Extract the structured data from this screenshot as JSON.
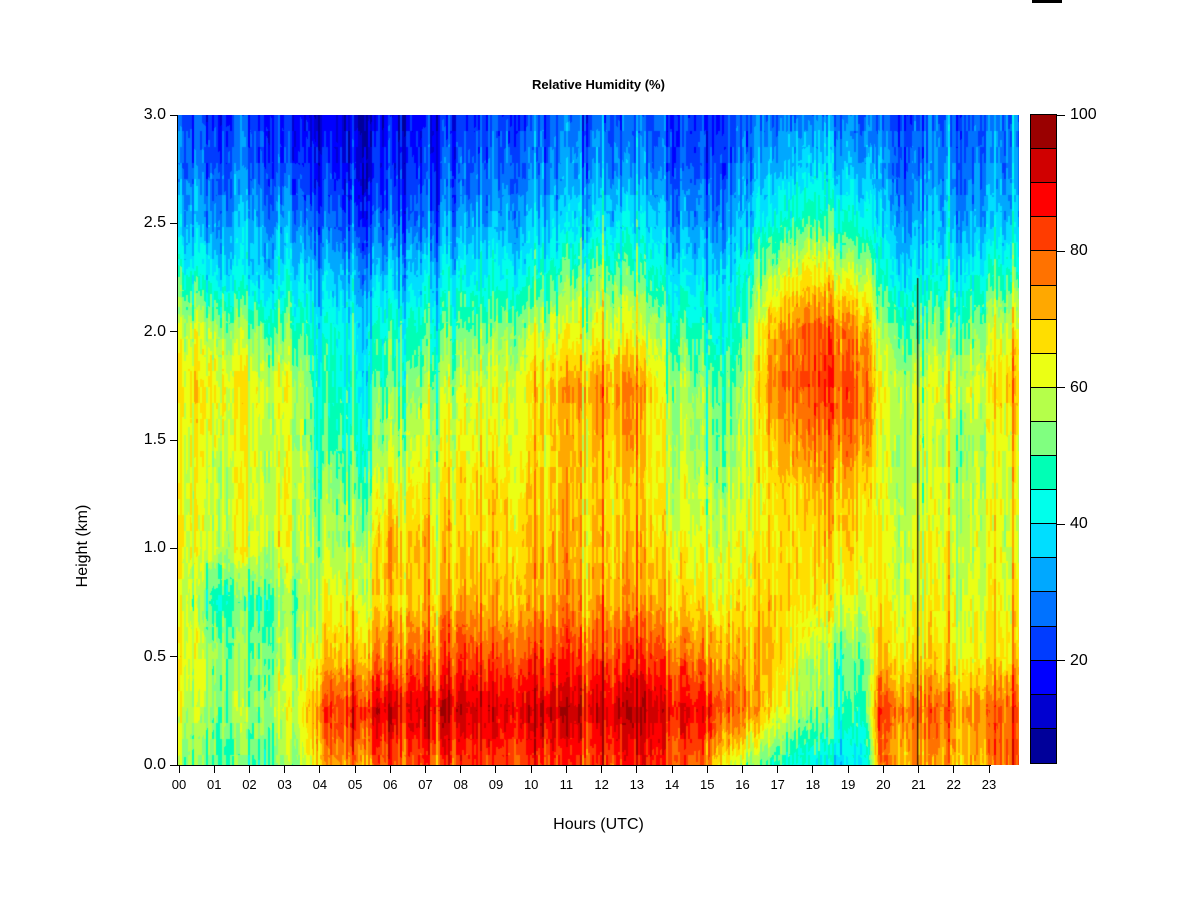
{
  "figure": {
    "title": "Relative Humidity (%)",
    "x_axis": {
      "label": "Hours (UTC)",
      "tick_labels": [
        "00",
        "01",
        "02",
        "03",
        "04",
        "05",
        "06",
        "07",
        "08",
        "09",
        "10",
        "11",
        "12",
        "13",
        "14",
        "15",
        "16",
        "17",
        "18",
        "19",
        "20",
        "21",
        "22",
        "23"
      ]
    },
    "y_axis": {
      "label": "Height (km)",
      "tick_labels": [
        "0.0",
        "0.5",
        "1.0",
        "1.5",
        "2.0",
        "2.5",
        "3.0"
      ]
    },
    "colorbar": {
      "tick_labels": [
        "100",
        "80",
        "60",
        "40",
        "20"
      ]
    }
  },
  "chart_data": {
    "type": "heatmap",
    "title": "Relative Humidity (%)",
    "xlabel": "Hours (UTC)",
    "ylabel": "Height (km)",
    "xlim": [
      0,
      24
    ],
    "ylim": [
      0,
      3
    ],
    "value_range": [
      5,
      100
    ],
    "colormap": "jet",
    "grid": false,
    "legend": "colorbar-right",
    "colorbar_ticks": [
      20,
      40,
      60,
      80,
      100
    ],
    "colorbar_segment_step": 5,
    "colorbar_segment_colors_bottom_to_top": [
      "#00009A",
      "#0000D0",
      "#0000FF",
      "#003CFF",
      "#0072FF",
      "#00A8FF",
      "#00DEFF",
      "#00FFEB",
      "#00FFB5",
      "#80FF80",
      "#B5FF4A",
      "#EBFF14",
      "#FFDE00",
      "#FFA800",
      "#FF7200",
      "#FF3C00",
      "#FF0000",
      "#D00000",
      "#9A0000"
    ],
    "x_hours": [
      0,
      1,
      2,
      3,
      4,
      5,
      6,
      7,
      8,
      9,
      10,
      11,
      12,
      13,
      14,
      15,
      16,
      17,
      18,
      19,
      20,
      21,
      22,
      23,
      24
    ],
    "y_heights_km": [
      0,
      0.25,
      0.5,
      0.75,
      1.0,
      1.25,
      1.5,
      1.75,
      2.0,
      2.25,
      2.5,
      2.75,
      3.0
    ],
    "values_percent_rows_by_height_ascending": [
      [
        54,
        52,
        50,
        52,
        70,
        75,
        80,
        82,
        82,
        82,
        83,
        84,
        85,
        85,
        83,
        80,
        60,
        48,
        42,
        38,
        75,
        72,
        70,
        72,
        80
      ],
      [
        60,
        55,
        55,
        58,
        78,
        85,
        90,
        92,
        92,
        90,
        92,
        93,
        94,
        94,
        90,
        90,
        80,
        65,
        55,
        48,
        82,
        78,
        76,
        76,
        80
      ],
      [
        63,
        58,
        52,
        55,
        65,
        70,
        75,
        80,
        82,
        80,
        82,
        83,
        84,
        83,
        80,
        78,
        72,
        70,
        58,
        52,
        68,
        66,
        65,
        64,
        66
      ],
      [
        62,
        48,
        50,
        52,
        60,
        62,
        68,
        70,
        72,
        70,
        72,
        74,
        75,
        73,
        70,
        68,
        66,
        68,
        66,
        62,
        64,
        62,
        62,
        62,
        62
      ],
      [
        63,
        60,
        62,
        60,
        55,
        55,
        70,
        70,
        68,
        68,
        70,
        72,
        72,
        70,
        66,
        64,
        62,
        66,
        68,
        68,
        62,
        60,
        60,
        60,
        60
      ],
      [
        62,
        60,
        63,
        60,
        52,
        50,
        62,
        65,
        65,
        66,
        68,
        70,
        70,
        68,
        62,
        60,
        58,
        66,
        70,
        70,
        60,
        58,
        58,
        60,
        60
      ],
      [
        62,
        62,
        62,
        58,
        48,
        45,
        55,
        60,
        62,
        62,
        65,
        70,
        74,
        72,
        60,
        56,
        55,
        70,
        76,
        78,
        60,
        58,
        56,
        58,
        62
      ],
      [
        65,
        66,
        64,
        60,
        45,
        42,
        50,
        55,
        58,
        60,
        66,
        72,
        76,
        74,
        58,
        55,
        52,
        76,
        82,
        82,
        62,
        58,
        60,
        62,
        70
      ],
      [
        60,
        58,
        55,
        50,
        42,
        40,
        45,
        48,
        50,
        52,
        58,
        62,
        65,
        62,
        52,
        48,
        46,
        72,
        80,
        78,
        55,
        50,
        52,
        55,
        62
      ],
      [
        45,
        42,
        40,
        38,
        35,
        32,
        35,
        38,
        40,
        42,
        44,
        50,
        55,
        50,
        42,
        40,
        42,
        58,
        68,
        62,
        45,
        40,
        42,
        44,
        48
      ],
      [
        33,
        32,
        35,
        30,
        25,
        22,
        25,
        28,
        30,
        32,
        34,
        38,
        42,
        38,
        33,
        32,
        34,
        44,
        50,
        46,
        36,
        32,
        33,
        34,
        34
      ],
      [
        27,
        26,
        28,
        22,
        18,
        15,
        18,
        22,
        24,
        26,
        28,
        30,
        34,
        30,
        27,
        26,
        28,
        34,
        38,
        36,
        30,
        27,
        28,
        28,
        28
      ],
      [
        24,
        22,
        24,
        18,
        14,
        12,
        15,
        18,
        20,
        22,
        24,
        26,
        28,
        25,
        23,
        22,
        25,
        28,
        30,
        28,
        26,
        24,
        25,
        26,
        26
      ]
    ],
    "anomaly_line_hour": 20.95,
    "anomaly_line_top_km": 2.25
  }
}
